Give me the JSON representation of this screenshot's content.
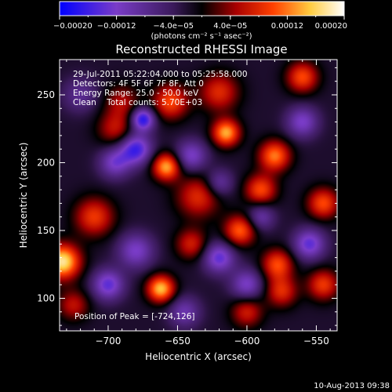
{
  "chart_data": {
    "type": "heatmap",
    "title": "Reconstructed RHESSI Image",
    "xlabel": "Heliocentric X (arcsec)",
    "ylabel": "Heliocentric Y (arcsec)",
    "xlim": [
      -735,
      -535
    ],
    "ylim": [
      76,
      276
    ],
    "x_ticks": [
      -700,
      -650,
      -600,
      -550
    ],
    "x_tick_labels": [
      "−700",
      "−650",
      "−600",
      "−550"
    ],
    "y_ticks": [
      100,
      150,
      200,
      250
    ],
    "y_tick_labels": [
      "100",
      "150",
      "200",
      "250"
    ],
    "colorbar": {
      "vmin": -0.0002,
      "vmax": 0.0002,
      "ticks": [
        -0.0002,
        -0.00012,
        -4e-05,
        4e-05,
        0.00012,
        0.0002
      ],
      "tick_labels": [
        "−0.00020",
        "−0.00012",
        "−4.0e−05",
        "4.0e−05",
        "0.00012",
        "0.00020"
      ],
      "unit_html": "(photons cm⁻² s⁻¹ asec⁻²)",
      "colors": [
        "#0000ff",
        "#7a3cc8",
        "#3a1a5a",
        "#000000",
        "#a80000",
        "#ff4000",
        "#ffcc40",
        "#ffffff"
      ]
    },
    "annotation_lines": [
      "29-Jul-2011 05:22:04.000 to 05:25:58.000",
      "Detectors: 4F 5F 6F 7F 8F, Att 0",
      "Energy Range: 25.0 - 50.0 keV",
      "Clean    Total counts: 5.70E+03"
    ],
    "peak_label": "Position of Peak = [-724,126]",
    "peak": [
      -724,
      126
    ],
    "blobs": [
      {
        "x": -733,
        "y": 127,
        "a": 0.000195,
        "s": 9
      },
      {
        "x": -662,
        "y": 107,
        "a": 0.00017,
        "s": 7
      },
      {
        "x": -658,
        "y": 197,
        "a": 0.00016,
        "s": 7
      },
      {
        "x": -615,
        "y": 222,
        "a": 0.00016,
        "s": 7
      },
      {
        "x": -655,
        "y": 245,
        "a": 0.00012,
        "s": 9
      },
      {
        "x": -620,
        "y": 252,
        "a": 0.0001,
        "s": 10
      },
      {
        "x": -695,
        "y": 225,
        "a": 8e-05,
        "s": 9
      },
      {
        "x": -710,
        "y": 160,
        "a": 0.00011,
        "s": 10
      },
      {
        "x": -635,
        "y": 175,
        "a": 0.0001,
        "s": 11
      },
      {
        "x": -605,
        "y": 150,
        "a": 0.00013,
        "s": 8
      },
      {
        "x": -580,
        "y": 205,
        "a": 0.00014,
        "s": 8
      },
      {
        "x": -590,
        "y": 180,
        "a": 0.00012,
        "s": 8
      },
      {
        "x": -578,
        "y": 125,
        "a": 0.00012,
        "s": 8
      },
      {
        "x": -575,
        "y": 105,
        "a": 0.0001,
        "s": 8
      },
      {
        "x": -545,
        "y": 170,
        "a": 0.00012,
        "s": 8
      },
      {
        "x": -545,
        "y": 110,
        "a": 0.00011,
        "s": 8
      },
      {
        "x": -560,
        "y": 263,
        "a": 0.00012,
        "s": 8
      },
      {
        "x": -600,
        "y": 90,
        "a": 9e-05,
        "s": 8
      },
      {
        "x": -725,
        "y": 95,
        "a": 8e-05,
        "s": 8
      },
      {
        "x": -640,
        "y": 140,
        "a": 9e-05,
        "s": 8
      },
      {
        "x": -690,
        "y": 245,
        "a": 7e-05,
        "s": 9
      },
      {
        "x": -680,
        "y": 210,
        "a": -0.00014,
        "s": 8
      },
      {
        "x": -675,
        "y": 232,
        "a": -0.00016,
        "s": 6
      },
      {
        "x": -695,
        "y": 200,
        "a": -0.0001,
        "s": 8
      },
      {
        "x": -640,
        "y": 205,
        "a": -0.0001,
        "s": 8
      },
      {
        "x": -620,
        "y": 130,
        "a": -0.00012,
        "s": 8
      },
      {
        "x": -620,
        "y": 185,
        "a": -8e-05,
        "s": 7
      },
      {
        "x": -680,
        "y": 135,
        "a": -0.0001,
        "s": 9
      },
      {
        "x": -700,
        "y": 110,
        "a": -0.00012,
        "s": 8
      },
      {
        "x": -645,
        "y": 90,
        "a": -8e-05,
        "s": 8
      },
      {
        "x": -560,
        "y": 230,
        "a": -0.0001,
        "s": 8
      },
      {
        "x": -555,
        "y": 140,
        "a": -0.00012,
        "s": 8
      },
      {
        "x": -590,
        "y": 160,
        "a": -8e-05,
        "s": 7
      },
      {
        "x": -720,
        "y": 250,
        "a": -6e-05,
        "s": 9
      },
      {
        "x": -600,
        "y": 110,
        "a": -0.0001,
        "s": 8
      }
    ]
  },
  "footer": {
    "date_stamp": "10-Aug-2013 09:38"
  }
}
